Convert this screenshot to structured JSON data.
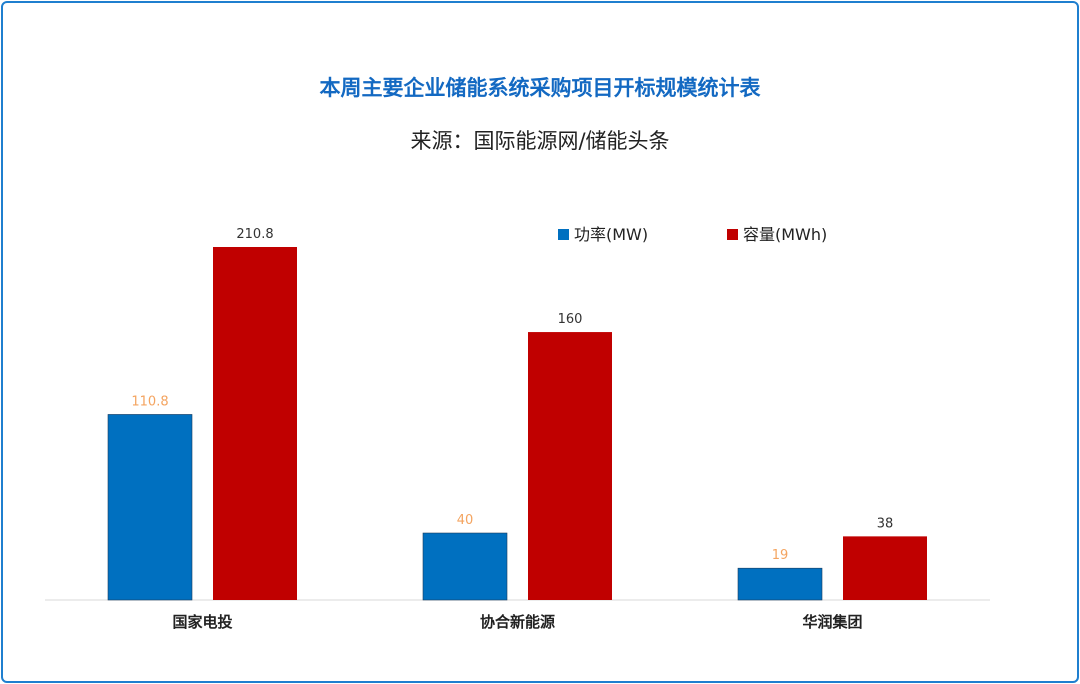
{
  "chart_data": {
    "type": "bar",
    "title": "本周主要企业储能系统采购项目开标规模统计表",
    "subtitle": "来源：国际能源网/储能头条",
    "categories": [
      "国家电投",
      "协合新能源",
      "华润集团"
    ],
    "series": [
      {
        "name": "功率(MW)",
        "values": [
          110.8,
          40,
          19
        ],
        "color": "#0070c0",
        "label_color": "#f4a460"
      },
      {
        "name": "容量(MWh)",
        "values": [
          210.8,
          160,
          38
        ],
        "color": "#c00000",
        "label_color": "#333333"
      }
    ],
    "value_labels": {
      "功率(MW)": [
        "110.8",
        "40",
        "19"
      ],
      "容量(MWh)": [
        "210.8",
        "160",
        "38"
      ]
    },
    "ylim": [
      0,
      210.8
    ],
    "grid": false,
    "legend_position": "top-right"
  }
}
